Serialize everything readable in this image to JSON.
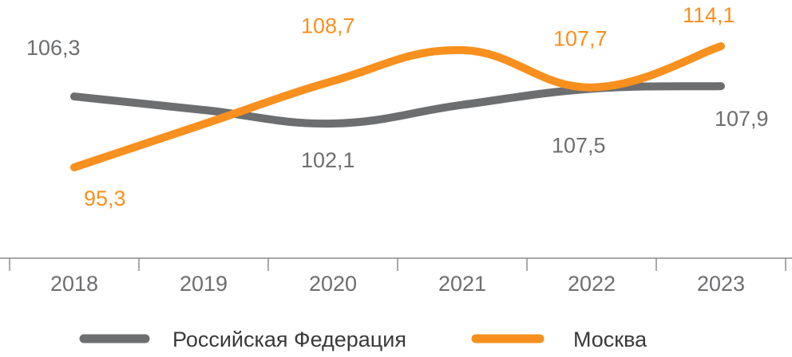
{
  "chart_data": {
    "type": "line",
    "categories": [
      "2018",
      "2019",
      "2020",
      "2021",
      "2022",
      "2023"
    ],
    "series": [
      {
        "name": "Российская Федерация",
        "color": "#6d6e70",
        "values": [
          106.3,
          104.2,
          102.1,
          105.0,
          107.5,
          107.9
        ],
        "labels": [
          "106,3",
          "",
          "102,1",
          "",
          "107,5",
          "107,9"
        ]
      },
      {
        "name": "Москва",
        "color": "#f7901e",
        "values": [
          95.3,
          102.0,
          108.7,
          113.5,
          107.7,
          114.1
        ],
        "labels": [
          "95,3",
          "",
          "108,7",
          "",
          "107,7",
          "114,1"
        ]
      }
    ],
    "title": "",
    "xlabel": "",
    "ylabel": "",
    "grid": false,
    "legend": "bottom"
  }
}
